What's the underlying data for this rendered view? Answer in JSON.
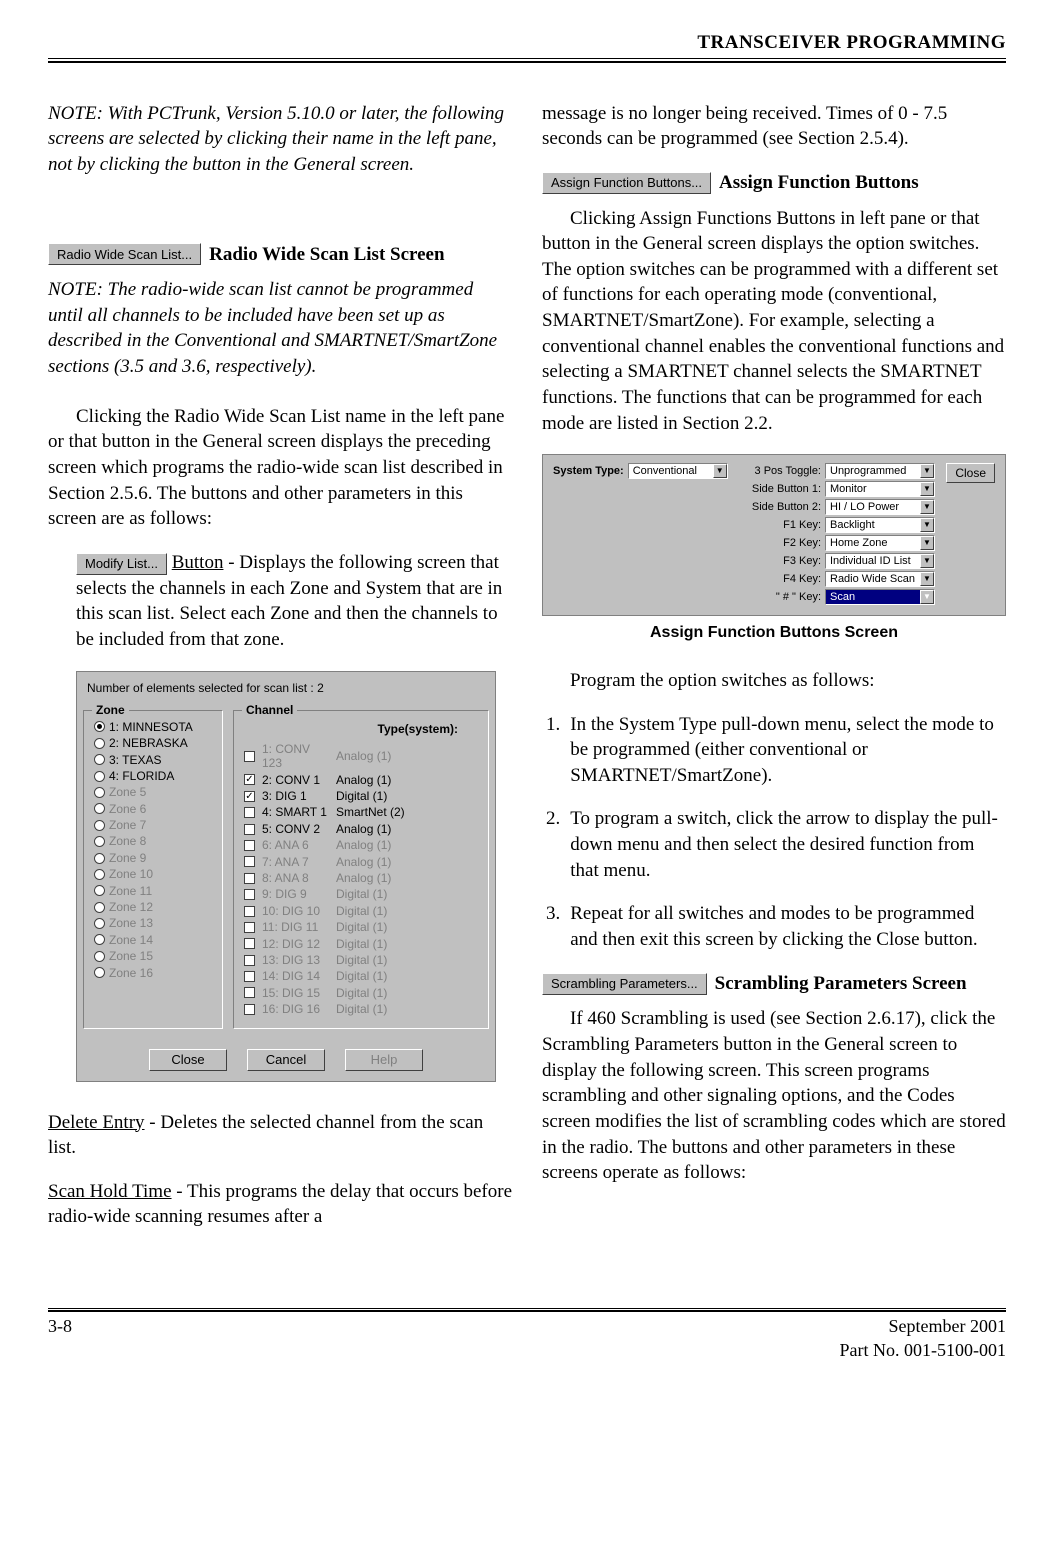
{
  "header": {
    "running_title": "TRANSCEIVER PROGRAMMING"
  },
  "leftcol": {
    "note1": "NOTE: With PCTrunk, Version 5.10.0 or later, the following screens are selected by clicking their name in the left pane, not by clicking the button in the General screen.",
    "btn_radio_wide": "Radio Wide Scan List...",
    "h_radio_wide": "Radio Wide Scan List Screen",
    "note2": "NOTE: The radio-wide scan list cannot be programmed until all channels to be included have been set up as described in the Conventional and SMARTNET/SmartZone sections (3.5 and 3.6, respectively).",
    "p1": "Clicking the Radio Wide Scan List name in the left pane or that button in the General screen displays the preceding screen which programs the radio-wide scan list described in Section 2.5.6. The buttons and other parameters in this screen are as follows:",
    "btn_modify": "Modify List...",
    "modify_label": "Button",
    "modify_text": " - Displays the following screen that selects the channels in each Zone and System that are in this scan list. Select each Zone and then the channels to be included from that zone.",
    "delete_label": "Delete Entry",
    "delete_text": " - Deletes the selected channel from the scan list.",
    "scan_label": "Scan Hold Time",
    "scan_text": " - This programs the delay that occurs before radio-wide scanning resumes after a "
  },
  "dlg1": {
    "top_text": "Number of elements selected for scan list :   2",
    "zone_title": "Zone",
    "chan_title": "Channel",
    "type_header": "Type(system):",
    "zones": [
      {
        "n": "1:",
        "label": "MINNESOTA",
        "enabled": true,
        "checked": true
      },
      {
        "n": "2:",
        "label": "NEBRASKA",
        "enabled": true,
        "checked": false
      },
      {
        "n": "3:",
        "label": "TEXAS",
        "enabled": true,
        "checked": false
      },
      {
        "n": "4:",
        "label": "FLORIDA",
        "enabled": true,
        "checked": false
      },
      {
        "n": "",
        "label": "Zone 5",
        "enabled": false,
        "checked": false
      },
      {
        "n": "",
        "label": "Zone 6",
        "enabled": false,
        "checked": false
      },
      {
        "n": "",
        "label": "Zone 7",
        "enabled": false,
        "checked": false
      },
      {
        "n": "",
        "label": "Zone 8",
        "enabled": false,
        "checked": false
      },
      {
        "n": "",
        "label": "Zone 9",
        "enabled": false,
        "checked": false
      },
      {
        "n": "",
        "label": "Zone 10",
        "enabled": false,
        "checked": false
      },
      {
        "n": "",
        "label": "Zone 11",
        "enabled": false,
        "checked": false
      },
      {
        "n": "",
        "label": "Zone 12",
        "enabled": false,
        "checked": false
      },
      {
        "n": "",
        "label": "Zone 13",
        "enabled": false,
        "checked": false
      },
      {
        "n": "",
        "label": "Zone 14",
        "enabled": false,
        "checked": false
      },
      {
        "n": "",
        "label": "Zone 15",
        "enabled": false,
        "checked": false
      },
      {
        "n": "",
        "label": "Zone 16",
        "enabled": false,
        "checked": false
      }
    ],
    "channels": [
      {
        "n": "1:",
        "label": "CONV 123",
        "type": "Analog (1)",
        "enabled": false,
        "checked": false
      },
      {
        "n": "2:",
        "label": "CONV 1",
        "type": "Analog (1)",
        "enabled": true,
        "checked": true
      },
      {
        "n": "3:",
        "label": "DIG 1",
        "type": "Digital (1)",
        "enabled": true,
        "checked": true
      },
      {
        "n": "4:",
        "label": "SMART 1",
        "type": "SmartNet (2)",
        "enabled": true,
        "checked": false
      },
      {
        "n": "5:",
        "label": "CONV 2",
        "type": "Analog (1)",
        "enabled": true,
        "checked": false
      },
      {
        "n": "6:",
        "label": "ANA 6",
        "type": "Analog (1)",
        "enabled": false,
        "checked": false
      },
      {
        "n": "7:",
        "label": "ANA 7",
        "type": "Analog (1)",
        "enabled": false,
        "checked": false
      },
      {
        "n": "8:",
        "label": "ANA 8",
        "type": "Analog (1)",
        "enabled": false,
        "checked": false
      },
      {
        "n": "9:",
        "label": "DIG 9",
        "type": "Digital (1)",
        "enabled": false,
        "checked": false
      },
      {
        "n": "10:",
        "label": "DIG 10",
        "type": "Digital (1)",
        "enabled": false,
        "checked": false
      },
      {
        "n": "11:",
        "label": "DIG 11",
        "type": "Digital (1)",
        "enabled": false,
        "checked": false
      },
      {
        "n": "12:",
        "label": "DIG 12",
        "type": "Digital (1)",
        "enabled": false,
        "checked": false
      },
      {
        "n": "13:",
        "label": "DIG 13",
        "type": "Digital (1)",
        "enabled": false,
        "checked": false
      },
      {
        "n": "14:",
        "label": "DIG 14",
        "type": "Digital (1)",
        "enabled": false,
        "checked": false
      },
      {
        "n": "15:",
        "label": "DIG 15",
        "type": "Digital (1)",
        "enabled": false,
        "checked": false
      },
      {
        "n": "16:",
        "label": "DIG 16",
        "type": "Digital (1)",
        "enabled": false,
        "checked": false
      }
    ],
    "btn_close": "Close",
    "btn_cancel": "Cancel",
    "btn_help": "Help"
  },
  "rightcol": {
    "p_top": "message is no longer being received. Times of 0 - 7.5 seconds can be programmed (see Section 2.5.4).",
    "btn_assign": "Assign Function Buttons...",
    "h_assign": "Assign Function Buttons",
    "p_assign": "Clicking Assign Functions Buttons in left pane or that button in the General screen displays the option switches. The option switches can be programmed with a different set of functions for each operating mode (conventional, SMARTNET/SmartZone). For example, selecting a conventional channel enables the conventional functions and selecting a SMARTNET channel selects the SMARTNET functions. The functions that can be programmed for each mode are listed in Section 2.2.",
    "caption": "Assign Function Buttons Screen",
    "p_program": "Program the option switches as follows:",
    "li1": "In the System Type pull-down menu, select the mode to be programmed (either conventional or SMARTNET/SmartZone).",
    "li2": "To program a switch, click the arrow to display the pull-down menu and then select the desired function from that menu.",
    "li3": "Repeat for all switches and modes to be programmed and then exit this screen by clicking the Close button.",
    "btn_scramble": "Scrambling Parameters...",
    "h_scramble": "Scrambling Parameters Screen",
    "p_scramble": "If 460 Scrambling is used (see Section 2.6.17), click the Scrambling Parameters button in the General screen to display the following screen. This screen programs scrambling and other signaling options, and the Codes screen modifies the list of scrambling codes which are stored in the radio. The buttons and other parameters in these screens operate as follows:"
  },
  "dlg2": {
    "lbl_system_type": "System Type:",
    "val_system_type": "Conventional",
    "btn_close": "Close",
    "rows": [
      {
        "label": "3 Pos Toggle:",
        "value": "Unprogrammed",
        "sel": false
      },
      {
        "label": "Side Button 1:",
        "value": "Monitor",
        "sel": false
      },
      {
        "label": "Side Button 2:",
        "value": "HI / LO Power",
        "sel": false
      },
      {
        "label": "F1 Key:",
        "value": "Backlight",
        "sel": false
      },
      {
        "label": "F2 Key:",
        "value": "Home Zone",
        "sel": false
      },
      {
        "label": "F3 Key:",
        "value": "Individual ID List",
        "sel": false
      },
      {
        "label": "F4 Key:",
        "value": "Radio Wide Scan",
        "sel": false
      },
      {
        "label": "\" # \" Key:",
        "value": "Scan",
        "sel": true
      }
    ]
  },
  "footer": {
    "page": "3-8",
    "date": "September 2001",
    "part": "Part No. 001-5100-001"
  }
}
